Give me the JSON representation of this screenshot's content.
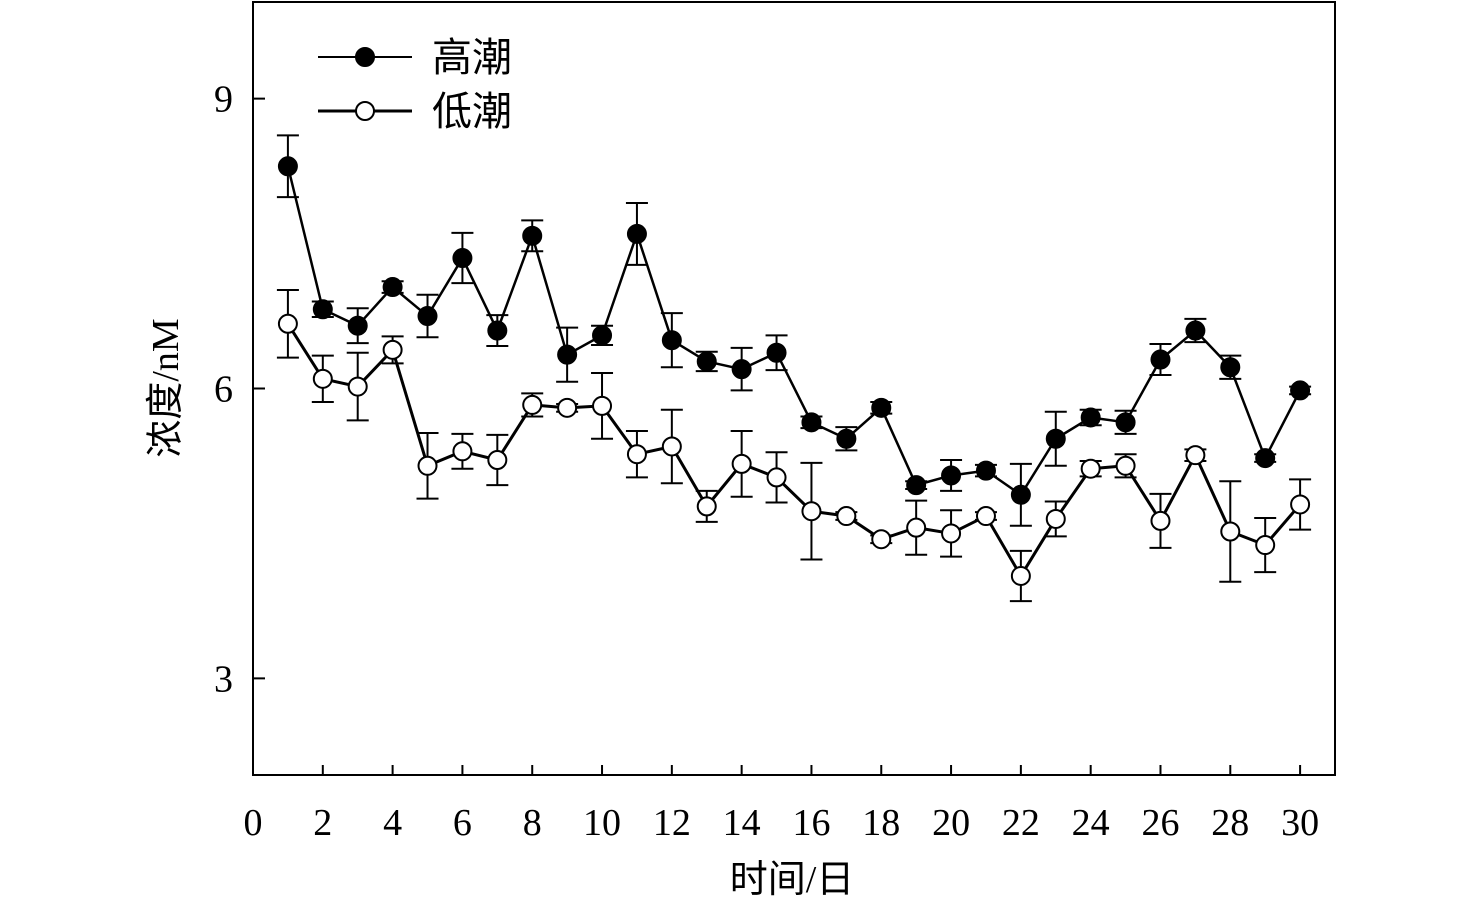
{
  "chart_data": {
    "type": "line",
    "xlabel": "时间/日",
    "ylabel": "浓度/nM",
    "xlim": [
      0,
      31
    ],
    "ylim": [
      2,
      10
    ],
    "xticks": [
      0,
      2,
      4,
      6,
      8,
      10,
      12,
      14,
      16,
      18,
      20,
      22,
      24,
      26,
      28,
      30
    ],
    "yticks": [
      3,
      6,
      9
    ],
    "grid": false,
    "legend_position": "top-left",
    "x": [
      1,
      2,
      3,
      4,
      5,
      6,
      7,
      8,
      9,
      10,
      11,
      12,
      13,
      14,
      15,
      16,
      17,
      18,
      19,
      20,
      21,
      22,
      23,
      24,
      25,
      26,
      27,
      28,
      29,
      30
    ],
    "series": [
      {
        "name": "高潮",
        "marker": "filled-circle",
        "color": "#000000",
        "values": [
          8.3,
          6.82,
          6.65,
          7.05,
          6.75,
          7.35,
          6.6,
          7.58,
          6.35,
          6.55,
          7.6,
          6.5,
          6.28,
          6.2,
          6.37,
          5.65,
          5.48,
          5.8,
          5.0,
          5.1,
          5.15,
          4.9,
          5.48,
          5.7,
          5.65,
          6.3,
          6.6,
          6.22,
          5.28,
          5.98
        ],
        "errors": [
          0.32,
          0.08,
          0.18,
          0.06,
          0.22,
          0.26,
          0.16,
          0.16,
          0.28,
          0.1,
          0.32,
          0.28,
          0.1,
          0.22,
          0.18,
          0.06,
          0.12,
          0.06,
          0.04,
          0.16,
          0.06,
          0.32,
          0.28,
          0.08,
          0.12,
          0.16,
          0.12,
          0.12,
          0.04,
          0.04
        ]
      },
      {
        "name": "低潮",
        "marker": "open-circle",
        "color": "#000000",
        "values": [
          6.67,
          6.1,
          6.02,
          6.4,
          5.2,
          5.35,
          5.26,
          5.83,
          5.8,
          5.82,
          5.32,
          5.4,
          4.78,
          5.22,
          5.08,
          4.73,
          4.68,
          4.44,
          4.56,
          4.5,
          4.68,
          4.06,
          4.65,
          5.17,
          5.2,
          4.63,
          5.31,
          4.52,
          4.38,
          4.8
        ],
        "errors": [
          0.35,
          0.24,
          0.35,
          0.14,
          0.34,
          0.18,
          0.26,
          0.12,
          0.04,
          0.34,
          0.24,
          0.38,
          0.16,
          0.34,
          0.26,
          0.5,
          0.04,
          0.04,
          0.28,
          0.24,
          0.04,
          0.26,
          0.18,
          0.08,
          0.12,
          0.28,
          0.06,
          0.52,
          0.28,
          0.26
        ]
      }
    ]
  }
}
